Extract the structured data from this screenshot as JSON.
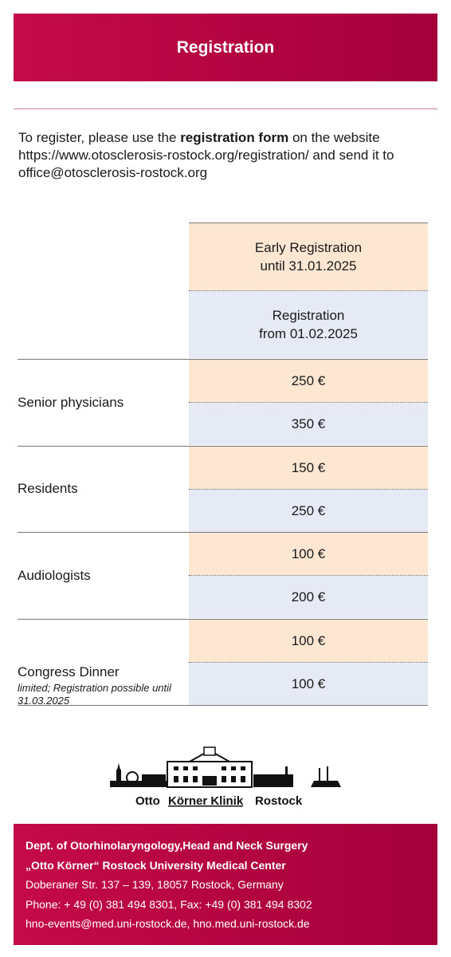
{
  "header": {
    "title": "Registration"
  },
  "intro": {
    "before": "To register, please use the ",
    "bold": "registration form",
    "after": " on the website https://www.otosclerosis-rostock.org/registration/ and send it to office@otosclerosis-rostock.org"
  },
  "table": {
    "headers": [
      [
        "Early Registration",
        "until 31.01.2025"
      ],
      [
        "Registration",
        "from 01.02.2025"
      ]
    ],
    "rows": [
      {
        "label": "Senior physicians",
        "prices": [
          "250 €",
          "350 €"
        ]
      },
      {
        "label": "Residents",
        "prices": [
          "150 €",
          "250 €"
        ]
      },
      {
        "label": "Audiologists",
        "prices": [
          "100 €",
          "200 €"
        ]
      },
      {
        "label": "Congress Dinner",
        "note": "limited; Registration possible until 31.03.2025",
        "prices": [
          "100 €",
          "100 €"
        ]
      }
    ]
  },
  "logo": {
    "words": [
      "Otto",
      "Körner Klinik",
      "Rostock"
    ]
  },
  "footer": {
    "lines": [
      "Dept. of Otorhinolaryngology,Head and Neck Surgery",
      "„Otto Körner“ Rostock University Medical Center",
      "Doberaner Str. 137 – 139, 18057 Rostock, Germany",
      "Phone: + 49 (0) 381 494 8301, Fax: +49 (0) 381 494 8302",
      "hno-events@med.uni-rostock.de, hno.med.uni-rostock.de"
    ]
  }
}
